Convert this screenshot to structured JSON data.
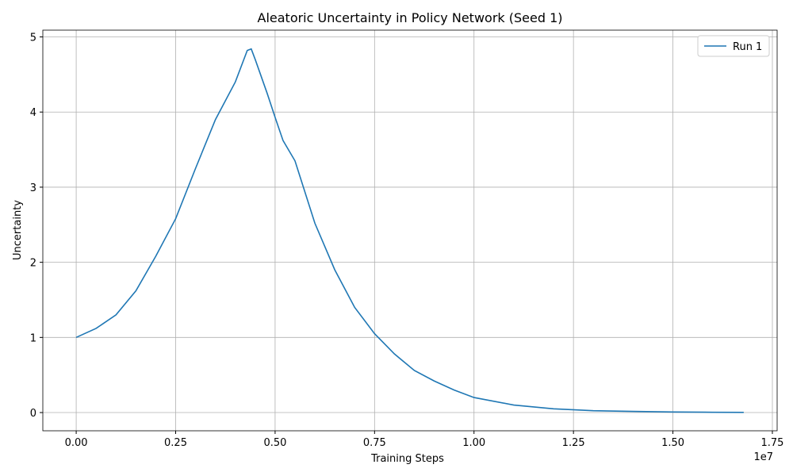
{
  "chart_data": {
    "type": "line",
    "title": "Aleatoric Uncertainty in Policy Network (Seed 1)",
    "x_label": "Training Steps",
    "y_label": "Uncertainty",
    "x_offset_label": "1e7",
    "x": [
      0,
      500000,
      1000000,
      1500000,
      2000000,
      2500000,
      3000000,
      3500000,
      4000000,
      4300000,
      4400000,
      4500000,
      4800000,
      5000000,
      5200000,
      5500000,
      6000000,
      6500000,
      7000000,
      7500000,
      8000000,
      8500000,
      9000000,
      9500000,
      10000000,
      11000000,
      12000000,
      13000000,
      14000000,
      15000000,
      16000000,
      16780000
    ],
    "series": [
      {
        "name": "Run 1",
        "color": "#1f77b4",
        "values": [
          1.0,
          1.12,
          1.3,
          1.62,
          2.08,
          2.58,
          3.25,
          3.9,
          4.4,
          4.82,
          4.84,
          4.7,
          4.25,
          3.93,
          3.62,
          3.35,
          2.52,
          1.9,
          1.4,
          1.05,
          0.78,
          0.56,
          0.42,
          0.3,
          0.2,
          0.1,
          0.05,
          0.025,
          0.015,
          0.008,
          0.004,
          0.002
        ]
      }
    ],
    "xlim": [
      -839000,
      17620000
    ],
    "xticks": [
      {
        "value": 0,
        "label": "0.00"
      },
      {
        "value": 2500000,
        "label": "0.25"
      },
      {
        "value": 5000000,
        "label": "0.50"
      },
      {
        "value": 7500000,
        "label": "0.75"
      },
      {
        "value": 10000000,
        "label": "1.00"
      },
      {
        "value": 12500000,
        "label": "1.25"
      },
      {
        "value": 15000000,
        "label": "1.50"
      },
      {
        "value": 17500000,
        "label": "1.75"
      }
    ],
    "ylim": [
      -0.2425,
      5.09
    ],
    "yticks": [
      0,
      1,
      2,
      3,
      4,
      5
    ],
    "grid": true,
    "legend": "upper right"
  }
}
